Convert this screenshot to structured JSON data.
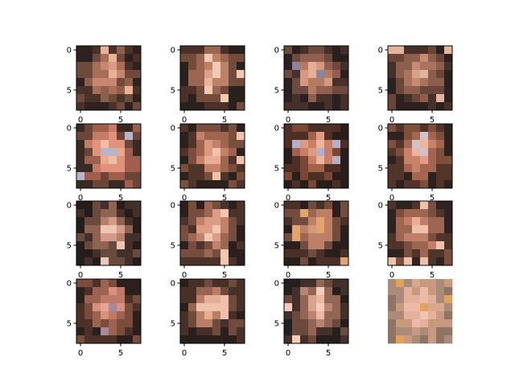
{
  "figure": {
    "grid_rows": 4,
    "grid_cols": 4,
    "image_resolution": [
      8,
      8
    ],
    "x_tick_labels": [
      "0",
      "5"
    ],
    "y_tick_labels": [
      "0",
      "5"
    ]
  },
  "panels": [
    {
      "id": 1,
      "axes_visible": true,
      "x_tick_labels_visible": true,
      "palette": [
        "#2e2220",
        "#4a3229",
        "#6e4a3c",
        "#8d5f4c",
        "#a96e57",
        "#c88670",
        "#dc9a82",
        "#e8b298"
      ]
    },
    {
      "id": 2,
      "axes_visible": true,
      "x_tick_labels_visible": true,
      "palette": [
        "#2a201d",
        "#4b3128",
        "#734b3a",
        "#9a6651",
        "#bd8068",
        "#dd9f86",
        "#eab59c",
        "#f2c9b2"
      ]
    },
    {
      "id": 3,
      "axes_visible": true,
      "x_tick_labels_visible": true,
      "palette": [
        "#2a201f",
        "#47302a",
        "#6e4a3e",
        "#915f4f",
        "#b57a64",
        "#d5977f",
        "#e6ae96",
        "#8b849b"
      ]
    },
    {
      "id": 4,
      "axes_visible": true,
      "x_tick_labels_visible": true,
      "palette": [
        "#2c211f",
        "#45302a",
        "#6a4639",
        "#8e5e4d",
        "#aa735f",
        "#c78a74",
        "#d9a08a",
        "#e2b39f"
      ]
    },
    {
      "id": 5,
      "axes_visible": true,
      "x_tick_labels_visible": true,
      "palette": [
        "#3a2a24",
        "#6b4537",
        "#a05f4c",
        "#c87b64",
        "#e0927a",
        "#eaa88e",
        "#f0bca4",
        "#b8b4cc"
      ]
    },
    {
      "id": 6,
      "axes_visible": true,
      "x_tick_labels_visible": true,
      "palette": [
        "#2d211e",
        "#4e3429",
        "#7a4e3d",
        "#a0654f",
        "#c48068",
        "#dc9880",
        "#e8ae95",
        "#f0c2ab"
      ]
    },
    {
      "id": 7,
      "axes_visible": true,
      "x_tick_labels_visible": true,
      "palette": [
        "#2a1e1b",
        "#4d2f25",
        "#7a4735",
        "#a3604a",
        "#c77f65",
        "#e09a80",
        "#ecb49b",
        "#b5b0c8"
      ]
    },
    {
      "id": 8,
      "axes_visible": true,
      "x_tick_labels_visible": true,
      "palette": [
        "#2e221f",
        "#523528",
        "#7e4f3c",
        "#a56650",
        "#c9826a",
        "#e39d85",
        "#f0b49c",
        "#d0c2cc"
      ]
    },
    {
      "id": 9,
      "axes_visible": true,
      "x_tick_labels_visible": true,
      "palette": [
        "#261c1a",
        "#43302a",
        "#6a4a3d",
        "#8f6352",
        "#b57f6a",
        "#d49c86",
        "#e4b39e",
        "#eec6b4"
      ]
    },
    {
      "id": 10,
      "axes_visible": true,
      "x_tick_labels_visible": true,
      "palette": [
        "#2b201d",
        "#4c3329",
        "#774e3e",
        "#9d6853",
        "#c1826a",
        "#dc9d86",
        "#e9b39b",
        "#f2c6b0"
      ]
    },
    {
      "id": 11,
      "axes_visible": true,
      "x_tick_labels_visible": true,
      "palette": [
        "#2a1f1c",
        "#4a3128",
        "#724c3d",
        "#9a6753",
        "#bd7f67",
        "#d69780",
        "#e4ad90",
        "#e3a36a"
      ]
    },
    {
      "id": 12,
      "axes_visible": true,
      "x_tick_labels_visible": true,
      "palette": [
        "#2e2320",
        "#4f3529",
        "#7a4f3e",
        "#9e6551",
        "#c17f69",
        "#dc9880",
        "#eaae96",
        "#f0c1aa"
      ]
    },
    {
      "id": 13,
      "axes_visible": true,
      "x_tick_labels_visible": true,
      "palette": [
        "#2a201d",
        "#4d3128",
        "#7a4c3b",
        "#9e6250",
        "#bf7a67",
        "#d9917f",
        "#e6a593",
        "#a7889c"
      ]
    },
    {
      "id": 14,
      "axes_visible": true,
      "x_tick_labels_visible": true,
      "palette": [
        "#291f1c",
        "#473027",
        "#704a3b",
        "#976451",
        "#ba7e67",
        "#d6987f",
        "#e6ad95",
        "#efc1aa"
      ]
    },
    {
      "id": 15,
      "axes_visible": true,
      "x_tick_labels_visible": true,
      "palette": [
        "#24201e",
        "#433029",
        "#6b4a3d",
        "#936554",
        "#b98470",
        "#d9a28c",
        "#e9b7a2",
        "#f3cbb8"
      ]
    },
    {
      "id": 16,
      "axes_visible": false,
      "x_tick_labels_visible": false,
      "palette": [
        "#8e7466",
        "#aa8a78",
        "#c79a80",
        "#d9a88e",
        "#e4b09a",
        "#ecbaa6",
        "#f0c4b2",
        "#e0a35c"
      ]
    }
  ]
}
